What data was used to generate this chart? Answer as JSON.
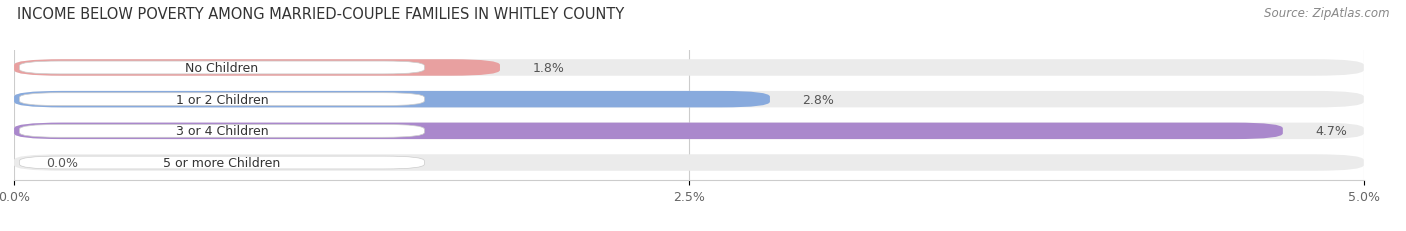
{
  "title": "INCOME BELOW POVERTY AMONG MARRIED-COUPLE FAMILIES IN WHITLEY COUNTY",
  "source": "Source: ZipAtlas.com",
  "categories": [
    "No Children",
    "1 or 2 Children",
    "3 or 4 Children",
    "5 or more Children"
  ],
  "values": [
    1.8,
    2.8,
    4.7,
    0.0
  ],
  "bar_colors": [
    "#E8A0A0",
    "#88AADD",
    "#AA88CC",
    "#70C8C8"
  ],
  "label_texts": [
    "1.8%",
    "2.8%",
    "4.7%",
    "0.0%"
  ],
  "xlim": [
    0,
    5.0
  ],
  "xticks": [
    0.0,
    2.5,
    5.0
  ],
  "xtick_labels": [
    "0.0%",
    "2.5%",
    "5.0%"
  ],
  "background_color": "#ffffff",
  "bar_background_color": "#ebebeb",
  "title_fontsize": 10.5,
  "source_fontsize": 8.5,
  "label_fontsize": 9,
  "category_fontsize": 9,
  "tick_fontsize": 9,
  "bar_height": 0.52,
  "label_color": "#555555",
  "category_text_color": "#333333",
  "grid_color": "#cccccc"
}
